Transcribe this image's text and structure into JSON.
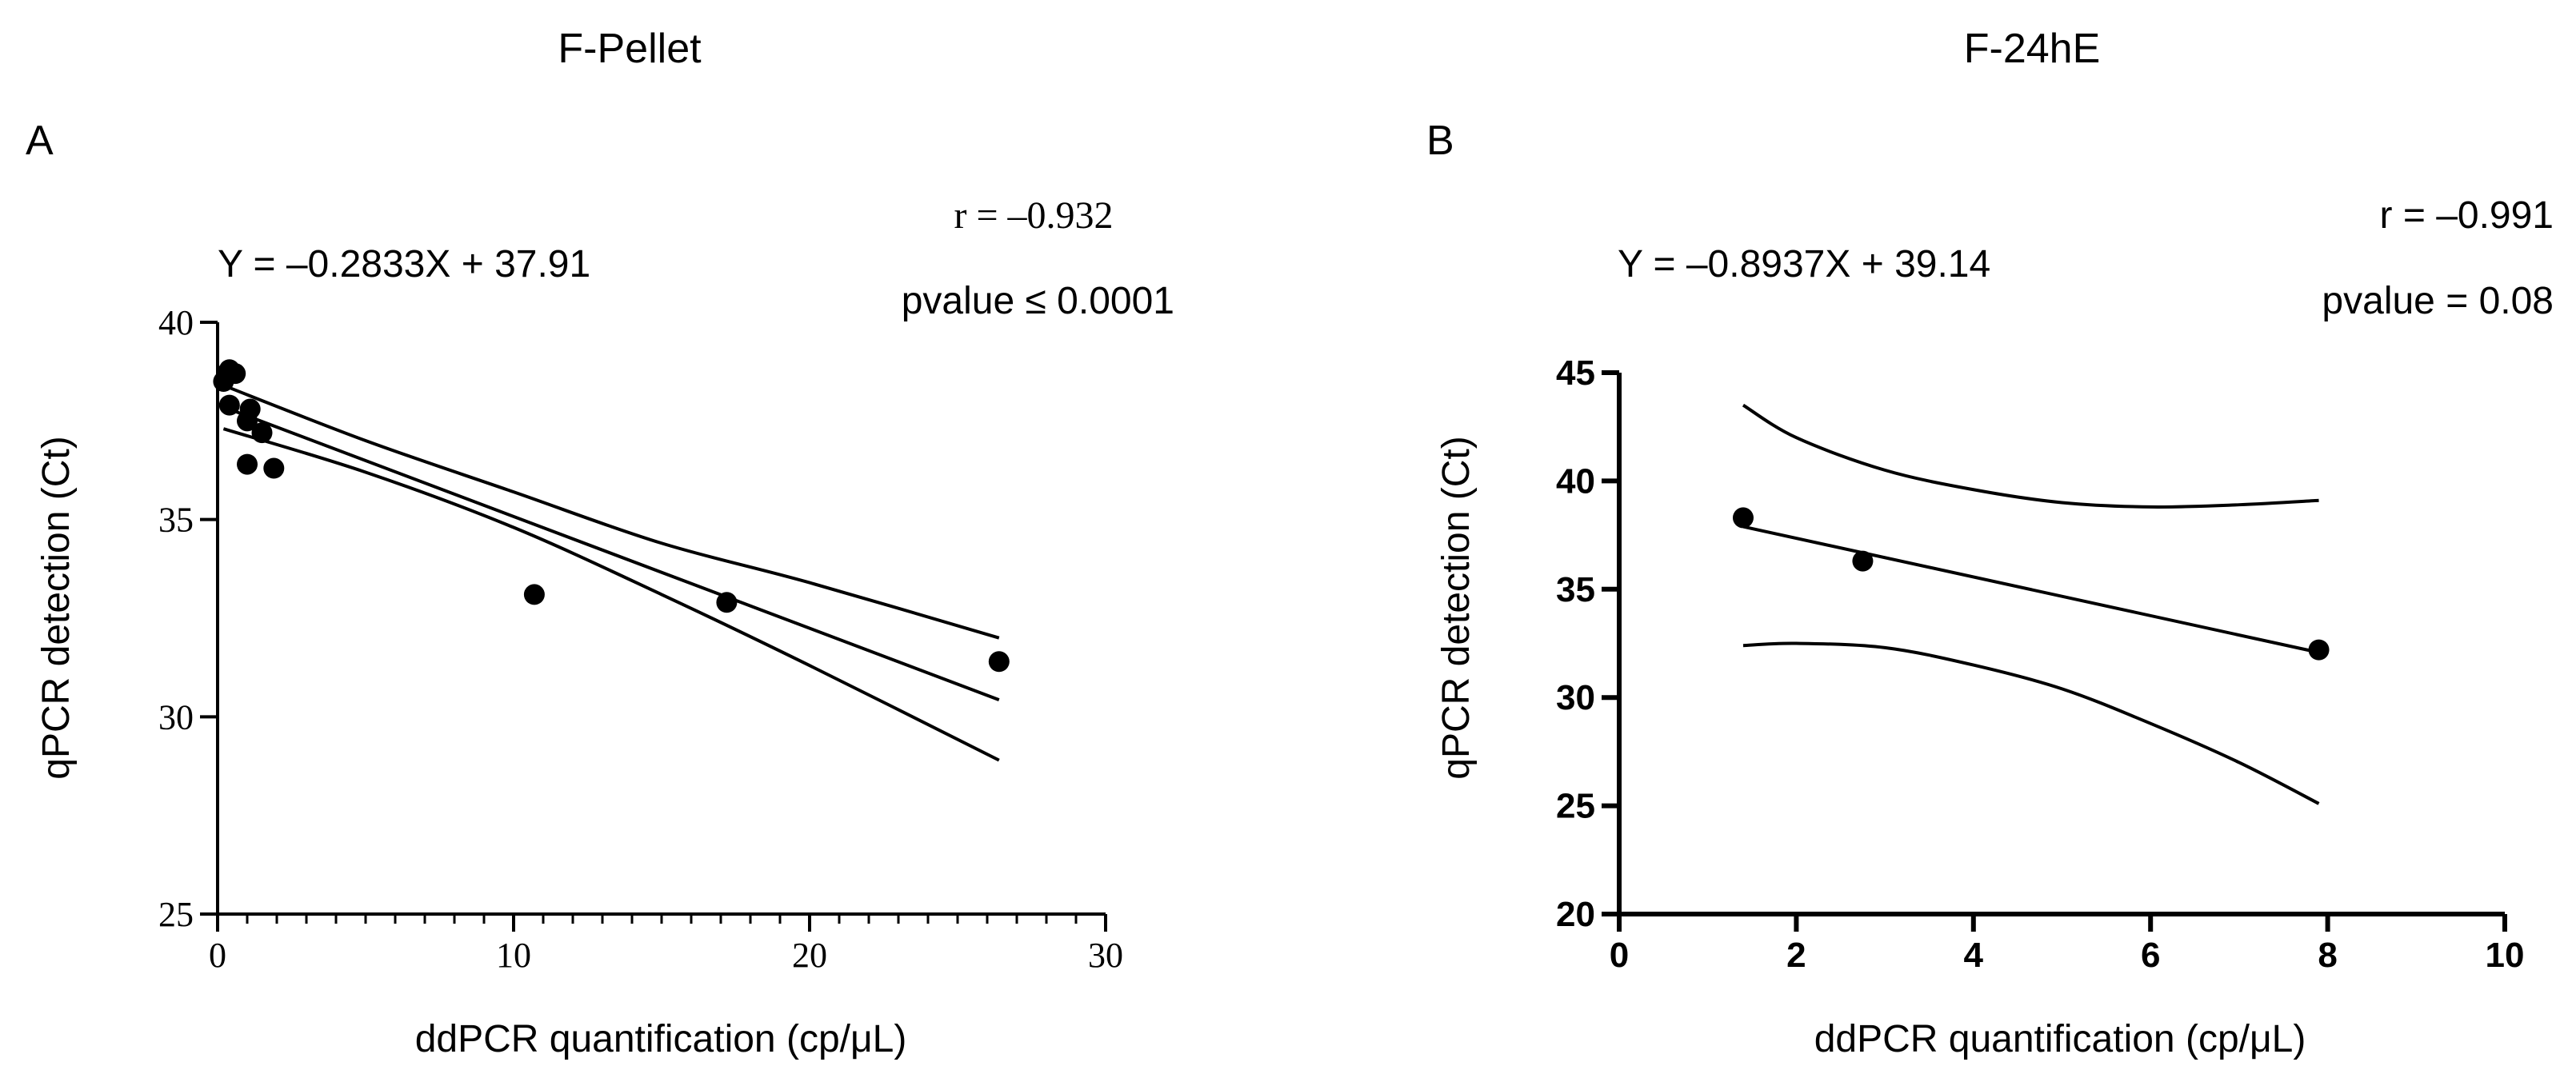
{
  "chart_data": [
    {
      "panel_label": "A",
      "title": "F-Pellet",
      "type": "scatter",
      "xlabel": "ddPCR quantification (cp/μL)",
      "ylabel": "qPCR detection (Ct)",
      "xlim": [
        0,
        30
      ],
      "ylim": [
        25,
        40
      ],
      "x_ticks": [
        0,
        10,
        20,
        30
      ],
      "y_ticks": [
        25,
        30,
        35,
        40
      ],
      "x_minor_step": 1,
      "equation": "Y = –0.2833X + 37.91",
      "r_text": "r = –0.932",
      "p_text": "pvalue ≤ 0.0001",
      "points": {
        "x": [
          0.2,
          0.3,
          0.4,
          0.5,
          0.6,
          0.4,
          1.0,
          1.1,
          1.5,
          1.0,
          1.9,
          10.7,
          17.2,
          26.4
        ],
        "y": [
          38.5,
          38.7,
          38.8,
          38.7,
          38.7,
          37.9,
          37.5,
          37.8,
          37.2,
          36.4,
          36.3,
          33.1,
          32.9,
          31.4
        ]
      },
      "fit": {
        "slope": -0.2833,
        "intercept": 37.91,
        "x_range": [
          0.2,
          26.4
        ]
      },
      "ci_upper": {
        "x": [
          0.2,
          5,
          10,
          15,
          20,
          26.4
        ],
        "y": [
          38.4,
          37.0,
          35.7,
          34.4,
          33.4,
          32.0
        ]
      },
      "ci_lower": {
        "x": [
          0.2,
          5,
          10,
          15,
          20,
          26.4
        ],
        "y": [
          37.3,
          36.2,
          34.8,
          33.1,
          31.3,
          28.9
        ]
      }
    },
    {
      "panel_label": "B",
      "title": "F-24hE",
      "type": "scatter",
      "xlabel": "ddPCR quantification (cp/μL)",
      "ylabel": "qPCR detection (Ct)",
      "xlim": [
        0,
        10
      ],
      "ylim": [
        20,
        45
      ],
      "x_ticks": [
        0,
        2,
        4,
        6,
        8,
        10
      ],
      "y_ticks": [
        20,
        25,
        30,
        35,
        40,
        45
      ],
      "equation": "Y = –0.8937X + 39.14",
      "r_text": "r = –0.991",
      "p_text": "pvalue = 0.08",
      "points": {
        "x": [
          1.4,
          2.75,
          7.9
        ],
        "y": [
          38.3,
          36.3,
          32.2
        ]
      },
      "fit": {
        "slope": -0.8937,
        "intercept": 39.14,
        "x_range": [
          1.4,
          7.9
        ]
      },
      "ci_upper": {
        "x": [
          1.4,
          2,
          3,
          4,
          5,
          6,
          7,
          7.9
        ],
        "y": [
          43.5,
          42.0,
          40.5,
          39.6,
          39.0,
          38.8,
          38.9,
          39.1
        ]
      },
      "ci_lower": {
        "x": [
          1.4,
          2,
          3,
          4,
          5,
          6,
          7,
          7.9
        ],
        "y": [
          32.4,
          32.5,
          32.3,
          31.5,
          30.4,
          28.8,
          27.0,
          25.1
        ]
      }
    }
  ]
}
